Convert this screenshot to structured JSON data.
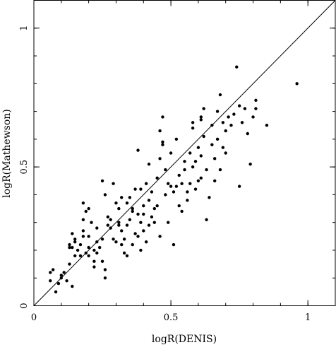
{
  "chart_data": {
    "type": "scatter",
    "title": "",
    "xlabel": "logR(DENIS)",
    "ylabel": "logR(Mathewson)",
    "xlim": [
      0,
      1.1
    ],
    "ylim": [
      0,
      1.1
    ],
    "x_ticks": [
      {
        "value": 0,
        "label": "0"
      },
      {
        "value": 0.5,
        "label": "0.5"
      },
      {
        "value": 1,
        "label": "1"
      }
    ],
    "y_ticks": [
      {
        "value": 0,
        "label": "0"
      },
      {
        "value": 0.5,
        "label": "0.5"
      },
      {
        "value": 1,
        "label": "1"
      }
    ],
    "reference_line": {
      "type": "y=x",
      "from": [
        0,
        0
      ],
      "to": [
        1.1,
        1.1
      ]
    },
    "grid": false,
    "points": [
      [
        0.06,
        0.09
      ],
      [
        0.06,
        0.12
      ],
      [
        0.07,
        0.13
      ],
      [
        0.08,
        0.05
      ],
      [
        0.09,
        0.08
      ],
      [
        0.1,
        0.1
      ],
      [
        0.1,
        0.11
      ],
      [
        0.11,
        0.12
      ],
      [
        0.12,
        0.09
      ],
      [
        0.13,
        0.15
      ],
      [
        0.13,
        0.21
      ],
      [
        0.13,
        0.22
      ],
      [
        0.14,
        0.21
      ],
      [
        0.14,
        0.26
      ],
      [
        0.14,
        0.07
      ],
      [
        0.15,
        0.23
      ],
      [
        0.15,
        0.24
      ],
      [
        0.16,
        0.2
      ],
      [
        0.17,
        0.18
      ],
      [
        0.17,
        0.22
      ],
      [
        0.18,
        0.25
      ],
      [
        0.18,
        0.27
      ],
      [
        0.18,
        0.31
      ],
      [
        0.18,
        0.37
      ],
      [
        0.19,
        0.19
      ],
      [
        0.19,
        0.34
      ],
      [
        0.2,
        0.21
      ],
      [
        0.2,
        0.18
      ],
      [
        0.2,
        0.35
      ],
      [
        0.2,
        0.25
      ],
      [
        0.21,
        0.3
      ],
      [
        0.22,
        0.14
      ],
      [
        0.22,
        0.16
      ],
      [
        0.23,
        0.23
      ],
      [
        0.23,
        0.28
      ],
      [
        0.23,
        0.19
      ],
      [
        0.24,
        0.21
      ],
      [
        0.25,
        0.24
      ],
      [
        0.25,
        0.16
      ],
      [
        0.25,
        0.45
      ],
      [
        0.26,
        0.4
      ],
      [
        0.26,
        0.13
      ],
      [
        0.26,
        0.1
      ],
      [
        0.27,
        0.32
      ],
      [
        0.28,
        0.28
      ],
      [
        0.28,
        0.31
      ],
      [
        0.29,
        0.24
      ],
      [
        0.29,
        0.44
      ],
      [
        0.3,
        0.23
      ],
      [
        0.31,
        0.29
      ],
      [
        0.31,
        0.3
      ],
      [
        0.31,
        0.35
      ],
      [
        0.32,
        0.22
      ],
      [
        0.32,
        0.27
      ],
      [
        0.32,
        0.39
      ],
      [
        0.33,
        0.19
      ],
      [
        0.33,
        0.24
      ],
      [
        0.34,
        0.18
      ],
      [
        0.34,
        0.29
      ],
      [
        0.34,
        0.37
      ],
      [
        0.35,
        0.31
      ],
      [
        0.35,
        0.39
      ],
      [
        0.36,
        0.35
      ],
      [
        0.36,
        0.22
      ],
      [
        0.37,
        0.42
      ],
      [
        0.37,
        0.26
      ],
      [
        0.38,
        0.25
      ],
      [
        0.38,
        0.33
      ],
      [
        0.38,
        0.56
      ],
      [
        0.39,
        0.2
      ],
      [
        0.39,
        0.3
      ],
      [
        0.39,
        0.42
      ],
      [
        0.4,
        0.27
      ],
      [
        0.4,
        0.33
      ],
      [
        0.4,
        0.36
      ],
      [
        0.41,
        0.44
      ],
      [
        0.41,
        0.23
      ],
      [
        0.42,
        0.38
      ],
      [
        0.42,
        0.51
      ],
      [
        0.43,
        0.32
      ],
      [
        0.43,
        0.41
      ],
      [
        0.44,
        0.3
      ],
      [
        0.44,
        0.35
      ],
      [
        0.45,
        0.36
      ],
      [
        0.45,
        0.46
      ],
      [
        0.46,
        0.25
      ],
      [
        0.46,
        0.63
      ],
      [
        0.46,
        0.53
      ],
      [
        0.47,
        0.59
      ],
      [
        0.47,
        0.68
      ],
      [
        0.48,
        0.4
      ],
      [
        0.48,
        0.49
      ],
      [
        0.49,
        0.44
      ],
      [
        0.49,
        0.3
      ],
      [
        0.5,
        0.43
      ],
      [
        0.5,
        0.55
      ],
      [
        0.51,
        0.22
      ],
      [
        0.51,
        0.41
      ],
      [
        0.52,
        0.43
      ],
      [
        0.52,
        0.6
      ],
      [
        0.53,
        0.36
      ],
      [
        0.53,
        0.47
      ],
      [
        0.54,
        0.34
      ],
      [
        0.55,
        0.49
      ],
      [
        0.55,
        0.52
      ],
      [
        0.56,
        0.38
      ],
      [
        0.56,
        0.41
      ],
      [
        0.57,
        0.44
      ],
      [
        0.57,
        0.55
      ],
      [
        0.58,
        0.5
      ],
      [
        0.58,
        0.64
      ],
      [
        0.59,
        0.42
      ],
      [
        0.59,
        0.52
      ],
      [
        0.6,
        0.45
      ],
      [
        0.6,
        0.57
      ],
      [
        0.61,
        0.46
      ],
      [
        0.61,
        0.54
      ],
      [
        0.61,
        0.68
      ],
      [
        0.62,
        0.61
      ],
      [
        0.62,
        0.71
      ],
      [
        0.63,
        0.49
      ],
      [
        0.63,
        0.31
      ],
      [
        0.64,
        0.39
      ],
      [
        0.65,
        0.58
      ],
      [
        0.65,
        0.65
      ],
      [
        0.66,
        0.45
      ],
      [
        0.66,
        0.53
      ],
      [
        0.67,
        0.6
      ],
      [
        0.67,
        0.7
      ],
      [
        0.68,
        0.76
      ],
      [
        0.68,
        0.49
      ],
      [
        0.69,
        0.57
      ],
      [
        0.69,
        0.66
      ],
      [
        0.7,
        0.63
      ],
      [
        0.71,
        0.68
      ],
      [
        0.72,
        0.65
      ],
      [
        0.73,
        0.69
      ],
      [
        0.74,
        0.86
      ],
      [
        0.75,
        0.43
      ],
      [
        0.75,
        0.72
      ],
      [
        0.76,
        0.66
      ],
      [
        0.77,
        0.71
      ],
      [
        0.78,
        0.62
      ],
      [
        0.79,
        0.51
      ],
      [
        0.8,
        0.68
      ],
      [
        0.81,
        0.74
      ],
      [
        0.81,
        0.71
      ],
      [
        0.85,
        0.65
      ],
      [
        0.96,
        0.8
      ],
      [
        0.61,
        0.67
      ],
      [
        0.7,
        0.55
      ],
      [
        0.58,
        0.66
      ],
      [
        0.54,
        0.44
      ],
      [
        0.47,
        0.58
      ],
      [
        0.42,
        0.29
      ],
      [
        0.36,
        0.34
      ],
      [
        0.27,
        0.29
      ],
      [
        0.22,
        0.2
      ],
      [
        0.15,
        0.18
      ],
      [
        0.3,
        0.37
      ]
    ]
  }
}
